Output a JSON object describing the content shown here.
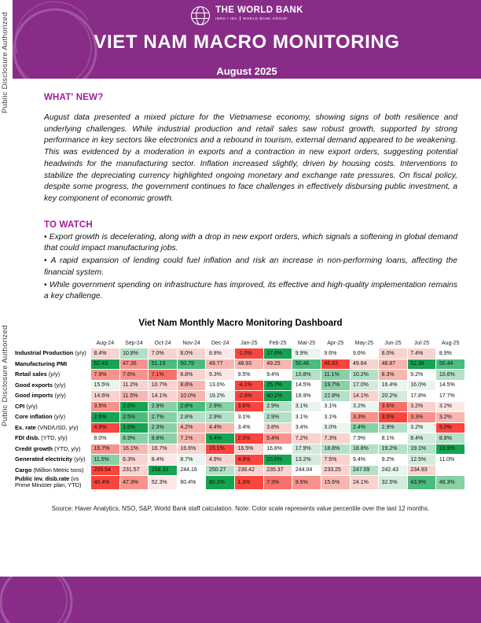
{
  "disclosure": {
    "label": "Public Disclosure Authorized"
  },
  "header": {
    "logo": {
      "name": "THE WORLD BANK",
      "sub_left": "IBRD • IDA",
      "sub_right": "WORLD BANK GROUP"
    },
    "title": "VIET NAM MACRO MONITORING",
    "date": "August 2025"
  },
  "whats_new": {
    "heading": "WHAT' NEW?",
    "body": "August data presented a mixed picture for the Vietnamese economy, showing signs of both resilience and underlying challenges. While industrial production and retail sales saw robust growth, supported by strong performance in key sectors like electronics and a rebound in tourism, external demand appeared to be weakening. This was evidenced by a moderation in exports and a contraction in new export orders, suggesting potential headwinds for the manufacturing sector. Inflation increased slightly, driven by housing costs. Interventions to stabilize the depreciating currency highlighted ongoing monetary and exchange rate pressures. On fiscal policy, despite some progress, the government continues to face challenges in effectively disbursing public investment, a key component of economic growth."
  },
  "to_watch": {
    "heading": "TO WATCH",
    "bullet_char": "•",
    "items": [
      "Export growth is decelerating, along with a drop in new export orders, which signals a softening in global demand that could impact manufacturing jobs.",
      "A rapid expansion of lending could fuel inflation and risk an increase in non-performing loans, affecting the financial system.",
      "While government spending on infrastructure has improved, its effective and high-quality implementation remains a key challenge."
    ]
  },
  "dashboard": {
    "title": "Viet Nam Monthly Macro Monitoring Dashboard",
    "columns": [
      "Aug-24",
      "Sep-24",
      "Oct-24",
      "Nov-24",
      "Dec-24",
      "Jan-25",
      "Feb-25",
      "Mar-25",
      "Apr-25",
      "May-25",
      "Jun-25",
      "Jul-25",
      "Aug-25"
    ],
    "rows": [
      {
        "label": "Industrial Production",
        "suffix": "(y/y)",
        "values": [
          "8.4%",
          "10.8%",
          "7.0%",
          "8.0%",
          "8.8%",
          "-1.0%",
          "17.6%",
          "9.9%",
          "9.6%",
          "9.6%",
          "8.0%",
          "7.4%",
          "8.9%"
        ],
        "colors": [
          "r1",
          "g2",
          "r1",
          "r1",
          "r0",
          "r5",
          "g5",
          "g0",
          "w",
          "w",
          "r1",
          "r1",
          "w"
        ]
      },
      {
        "label": "Manufacturing PMI",
        "suffix": "",
        "values": [
          "52.43",
          "47.35",
          "51.19",
          "50.79",
          "49.77",
          "48.93",
          "49.25",
          "50.46",
          "45.63",
          "49.84",
          "48.87",
          "52.38",
          "50.44"
        ],
        "colors": [
          "g5",
          "r3",
          "g4",
          "g4",
          "r2",
          "r2",
          "r2",
          "g4",
          "r5",
          "r1",
          "r2",
          "g5",
          "g4"
        ]
      },
      {
        "label": "Retail sales",
        "suffix": "(y/y)",
        "values": [
          "7.9%",
          "7.6%",
          "7.1%",
          "8.8%",
          "9.3%",
          "9.5%",
          "9.4%",
          "10.8%",
          "11.1%",
          "10.2%",
          "8.3%",
          "9.2%",
          "10.6%"
        ],
        "colors": [
          "r3",
          "r3",
          "r4",
          "r1",
          "r0",
          "w",
          "w",
          "g2",
          "g3",
          "g2",
          "r2",
          "w",
          "g2"
        ]
      },
      {
        "label": "Good exports",
        "suffix": "(y/y)",
        "values": [
          "15.5%",
          "11.2%",
          "10.7%",
          "8.8%",
          "13.0%",
          "-4.1%",
          "25.7%",
          "14.5%",
          "19.7%",
          "17.0%",
          "16.4%",
          "16.0%",
          "14.5%"
        ],
        "colors": [
          "g0",
          "r1",
          "r1",
          "r2",
          "w",
          "r5",
          "g5",
          "w",
          "g3",
          "g1",
          "g0",
          "g0",
          "w"
        ]
      },
      {
        "label": "Good imports",
        "suffix": "(y/y)",
        "values": [
          "14.6%",
          "11.5%",
          "14.1%",
          "10.0%",
          "19.2%",
          "-2.8%",
          "40.2%",
          "18.9%",
          "22.8%",
          "14.1%",
          "20.2%",
          "17.8%",
          "17.7%"
        ],
        "colors": [
          "r1",
          "r2",
          "r1",
          "r2",
          "g0",
          "r5",
          "g5",
          "w",
          "g2",
          "r1",
          "g1",
          "w",
          "w"
        ]
      },
      {
        "label": "CPI",
        "suffix": "(y/y)",
        "values": [
          "3.5%",
          "2.6%",
          "2.9%",
          "2.8%",
          "2.9%",
          "3.6%",
          "2.9%",
          "3.1%",
          "3.1%",
          "3.2%",
          "3.6%",
          "3.2%",
          "3.2%"
        ],
        "colors": [
          "r3",
          "g5",
          "g3",
          "g4",
          "g3",
          "r5",
          "g2",
          "g0",
          "w",
          "g0",
          "r4",
          "r1",
          "r0"
        ]
      },
      {
        "label": "Core inflation",
        "suffix": "(y/y)",
        "values": [
          "2.5%",
          "2.5%",
          "2.7%",
          "2.8%",
          "2.9%",
          "3.1%",
          "2.9%",
          "3.1%",
          "3.1%",
          "3.3%",
          "3.5%",
          "3.3%",
          "3.2%"
        ],
        "colors": [
          "g5",
          "g4",
          "g3",
          "g2",
          "g2",
          "w",
          "g2",
          "w",
          "w",
          "r3",
          "r5",
          "r3",
          "r2"
        ]
      },
      {
        "label": "Ex. rate",
        "suffix": "(VND/USD, y/y)",
        "values": [
          "4.9%",
          "1.6%",
          "2.3%",
          "4.2%",
          "4.4%",
          "3.4%",
          "3.8%",
          "3.4%",
          "3.0%",
          "2.4%",
          "2.9%",
          "3.2%",
          "5.0%"
        ],
        "colors": [
          "r5",
          "g5",
          "g3",
          "r2",
          "r2",
          "w",
          "r1",
          "w",
          "g0",
          "g3",
          "g2",
          "g0",
          "r5"
        ]
      },
      {
        "label": "FDI disb.",
        "suffix": "(YTD, y/y)",
        "values": [
          "8.0%",
          "8.9%",
          "8.8%",
          "7.1%",
          "9.4%",
          "2.0%",
          "5.4%",
          "7.2%",
          "7.3%",
          "7.9%",
          "8.1%",
          "8.4%",
          "8.8%"
        ],
        "colors": [
          "w",
          "g3",
          "g3",
          "r2",
          "g5",
          "r5",
          "r3",
          "r1",
          "r1",
          "w",
          "w",
          "g1",
          "g2"
        ]
      },
      {
        "label": "Credit growth",
        "suffix": "(YTD, y/y)",
        "values": [
          "15.7%",
          "16.1%",
          "16.7%",
          "16.6%",
          "15.1%",
          "16.5%",
          "16.8%",
          "17.9%",
          "18.8%",
          "18.8%",
          "19.2%",
          "19.1%",
          "19.9%"
        ],
        "colors": [
          "r3",
          "r2",
          "r1",
          "r1",
          "r5",
          "r1",
          "w",
          "g1",
          "g2",
          "g2",
          "g2",
          "g2",
          "g5"
        ]
      },
      {
        "label": "Generated electricity",
        "suffix": "(y/y)",
        "values": [
          "11.5%",
          "6.3%",
          "8.4%",
          "8.7%",
          "4.9%",
          "4.9%",
          "23.0%",
          "13.2%",
          "7.5%",
          "9.4%",
          "9.2%",
          "12.5%",
          "11.0%"
        ],
        "colors": [
          "g3",
          "r1",
          "r0",
          "g0",
          "r1",
          "r5",
          "g5",
          "g1",
          "r1",
          "w",
          "w",
          "g1",
          "w"
        ]
      },
      {
        "label": "Cargo",
        "suffix": "(Million Metric tons)",
        "values": [
          "209.54",
          "231.57",
          "258.33",
          "244.16",
          "250.27",
          "236.42",
          "235.37",
          "244.04",
          "233.25",
          "247.09",
          "242.43",
          "234.93",
          ""
        ],
        "colors": [
          "r5",
          "r1",
          "g5",
          "w",
          "g2",
          "r1",
          "r1",
          "w",
          "r1",
          "g2",
          "g0",
          "r1",
          "none"
        ]
      },
      {
        "label": "Public inv. disb.rate",
        "suffix": "(vs Prime Minister plan, YTD)",
        "values": [
          "40.4%",
          "47.3%",
          "52.3%",
          "60.4%",
          "80.3%",
          "1.3%",
          "7.3%",
          "9.5%",
          "15.6%",
          "24.1%",
          "32.5%",
          "43.9%",
          "46.3%"
        ],
        "colors": [
          "r5",
          "r3",
          "r0",
          "w",
          "g5",
          "r5",
          "r4",
          "r3",
          "r2",
          "r1",
          "g1",
          "g4",
          "g3"
        ]
      }
    ],
    "source": "Source: Haver Analytics, NSO, S&P, World Bank staff calculation. Note: Color scale represents value percentile over the last 12 months."
  },
  "theme": {
    "purple": "#882C87",
    "ring": "#B273B1",
    "accent": "#A21C9E",
    "palette": {
      "r5": "#F9453D",
      "r4": "#F8706A",
      "r3": "#F7938C",
      "r2": "#F7B6B0",
      "r1": "#F8D3CF",
      "r0": "#FBE8E6",
      "w": "#FEFEFE",
      "g0": "#EBF5F0",
      "g1": "#D3EBDD",
      "g2": "#B4E0C7",
      "g3": "#88D0A6",
      "g4": "#4CBC7E",
      "g5": "#16A452",
      "none": "#FFFFFF"
    }
  }
}
